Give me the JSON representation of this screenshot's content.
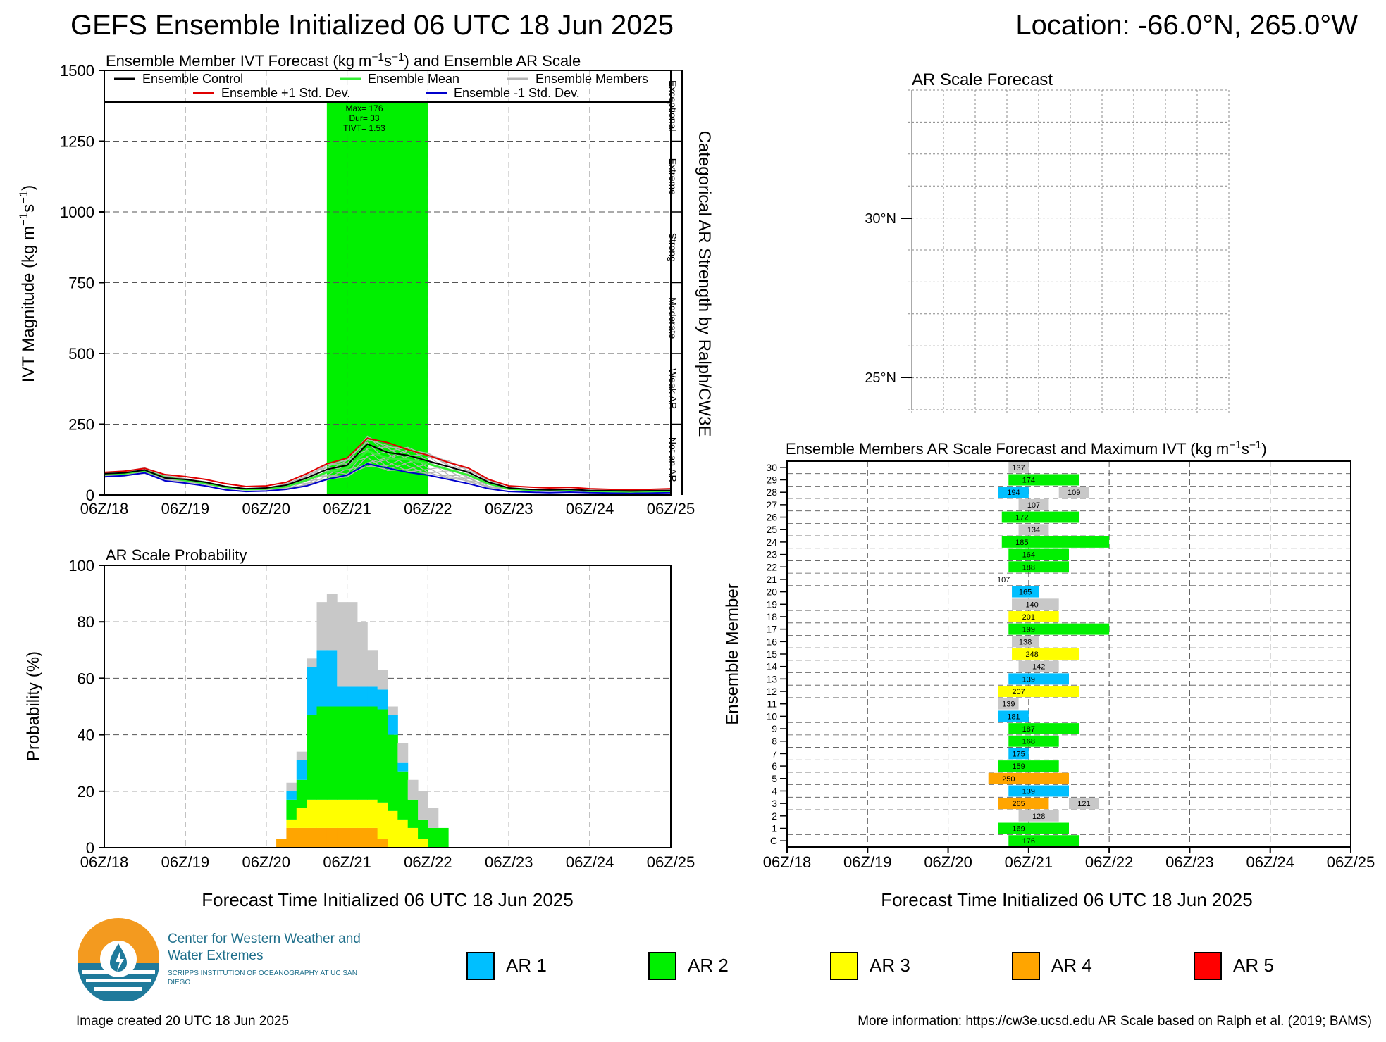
{
  "header": {
    "title": "GEFS Ensemble Initialized 06 UTC 18 Jun 2025",
    "location": "Location: -66.0°N, 265.0°W"
  },
  "colors": {
    "ar1": "#00bfff",
    "ar2": "#00f000",
    "ar3": "#ffff00",
    "ar4": "#ffa500",
    "ar5": "#ff0000",
    "not_ar_gray": "#c8c8c8",
    "control": "#000000",
    "mean": "#33ee33",
    "plus_std": "#e00000",
    "minus_std": "#0000cc",
    "members": "#b4b4b4"
  },
  "x_ticks": [
    "06Z/18",
    "06Z/19",
    "06Z/20",
    "06Z/21",
    "06Z/22",
    "06Z/23",
    "06Z/24",
    "06Z/25"
  ],
  "chart_data": [
    {
      "type": "line",
      "title": "Ensemble Member IVT Forecast (kg m−1s−1) and Ensemble AR Scale",
      "ylabel": "IVT Magnitude (kg m−1s−1)",
      "right_label": "Categorical AR Strength by Ralph/CW3E",
      "ylim": [
        0,
        1500
      ],
      "yticks": [
        "0",
        "250",
        "500",
        "750",
        "1000",
        "1250",
        "1500"
      ],
      "categories_right": [
        "Not an AR",
        "Weak AR",
        "Moderate",
        "Strong",
        "Extreme",
        "Exceptional"
      ],
      "legend": [
        "Ensemble Control",
        "Ensemble Mean",
        "Ensemble Members",
        "Ensemble +1 Std. Dev.",
        "Ensemble -1 Std. Dev."
      ],
      "x_hours": [
        0,
        6,
        12,
        18,
        24,
        30,
        36,
        42,
        48,
        54,
        60,
        66,
        72,
        78,
        84,
        90,
        96,
        102,
        108,
        114,
        120,
        126,
        132,
        138,
        144,
        150,
        156,
        162,
        168
      ],
      "series": [
        {
          "name": "Ensemble Control",
          "values": [
            75,
            78,
            88,
            60,
            55,
            45,
            30,
            22,
            25,
            35,
            60,
            90,
            105,
            180,
            150,
            140,
            120,
            100,
            80,
            45,
            25,
            20,
            18,
            20,
            16,
            15,
            14,
            15,
            16
          ]
        },
        {
          "name": "Ensemble Mean",
          "values": [
            72,
            76,
            86,
            62,
            52,
            42,
            28,
            20,
            22,
            30,
            52,
            80,
            95,
            155,
            130,
            125,
            110,
            90,
            70,
            40,
            22,
            18,
            16,
            18,
            14,
            13,
            12,
            13,
            14
          ]
        },
        {
          "name": "Ensemble +1 Std. Dev.",
          "values": [
            80,
            84,
            94,
            72,
            65,
            55,
            40,
            30,
            32,
            45,
            75,
            110,
            130,
            200,
            185,
            160,
            140,
            115,
            95,
            55,
            32,
            28,
            25,
            27,
            22,
            20,
            18,
            20,
            22
          ]
        },
        {
          "name": "Ensemble -1 Std. Dev.",
          "values": [
            64,
            68,
            78,
            50,
            42,
            32,
            18,
            12,
            14,
            20,
            32,
            55,
            70,
            110,
            95,
            80,
            70,
            55,
            40,
            22,
            12,
            10,
            8,
            10,
            8,
            7,
            6,
            7,
            8
          ]
        }
      ],
      "ar_period": {
        "start_hour": 66,
        "end_hour": 96,
        "max": 176,
        "dur": 33,
        "tivt": 1.53
      },
      "annotation": [
        "Max= 176",
        "Dur= 33",
        "TIVT= 1.53"
      ]
    },
    {
      "type": "bar",
      "title": "AR Scale Probability",
      "ylabel": "Probability (%)",
      "xlabel": "Forecast Time Initialized 06 UTC 18 Jun 2025",
      "ylim": [
        0,
        100
      ],
      "yticks": [
        "0",
        "20",
        "40",
        "60",
        "80",
        "100"
      ],
      "bin_hours": 3,
      "x_start_hour": 51,
      "stacks": [
        {
          "ar4": 3,
          "ar3": 0,
          "ar2": 0,
          "ar1": 0,
          "gray": 0
        },
        {
          "ar4": 7,
          "ar3": 3,
          "ar2": 7,
          "ar1": 3,
          "gray": 3
        },
        {
          "ar4": 7,
          "ar3": 7,
          "ar2": 10,
          "ar1": 7,
          "gray": 3
        },
        {
          "ar4": 7,
          "ar3": 10,
          "ar2": 30,
          "ar1": 17,
          "gray": 3
        },
        {
          "ar4": 7,
          "ar3": 10,
          "ar2": 33,
          "ar1": 20,
          "gray": 17
        },
        {
          "ar4": 7,
          "ar3": 10,
          "ar2": 33,
          "ar1": 20,
          "gray": 20
        },
        {
          "ar4": 7,
          "ar3": 10,
          "ar2": 33,
          "ar1": 7,
          "gray": 30
        },
        {
          "ar4": 7,
          "ar3": 10,
          "ar2": 33,
          "ar1": 7,
          "gray": 30
        },
        {
          "ar4": 7,
          "ar3": 10,
          "ar2": 33,
          "ar1": 7,
          "gray": 23
        },
        {
          "ar4": 7,
          "ar3": 10,
          "ar2": 33,
          "ar1": 7,
          "gray": 13
        },
        {
          "ar4": 3,
          "ar3": 13,
          "ar2": 33,
          "ar1": 7,
          "gray": 7
        },
        {
          "ar4": 0,
          "ar3": 13,
          "ar2": 27,
          "ar1": 7,
          "gray": 3
        },
        {
          "ar4": 0,
          "ar3": 10,
          "ar2": 17,
          "ar1": 3,
          "gray": 7
        },
        {
          "ar4": 0,
          "ar3": 7,
          "ar2": 10,
          "ar1": 0,
          "gray": 7
        },
        {
          "ar4": 0,
          "ar3": 3,
          "ar2": 7,
          "ar1": 0,
          "gray": 10
        },
        {
          "ar4": 0,
          "ar3": 0,
          "ar2": 7,
          "ar1": 0,
          "gray": 7
        },
        {
          "ar4": 0,
          "ar3": 0,
          "ar2": 7,
          "ar1": 0,
          "gray": 0
        }
      ]
    },
    {
      "type": "table",
      "title": "Ensemble Members AR Scale Forecast and Maximum IVT (kg m−1s−1)",
      "ylabel": "Ensemble Member",
      "xlabel": "Forecast Time Initialized 06 UTC 18 Jun 2025",
      "members": [
        {
          "label": "C",
          "bars": [
            {
              "start": 66,
              "end": 87,
              "cat": "ar2",
              "max": 176
            }
          ]
        },
        {
          "label": "1",
          "bars": [
            {
              "start": 63,
              "end": 84,
              "cat": "ar2",
              "max": 169
            }
          ]
        },
        {
          "label": "2",
          "bars": [
            {
              "start": 69,
              "end": 81,
              "cat": "gray",
              "max": 128
            }
          ]
        },
        {
          "label": "3",
          "bars": [
            {
              "start": 63,
              "end": 78,
              "cat": "ar4",
              "max": 265
            },
            {
              "start": 84,
              "end": 93,
              "cat": "gray",
              "max": 121
            }
          ]
        },
        {
          "label": "4",
          "bars": [
            {
              "start": 66,
              "end": 84,
              "cat": "ar1",
              "max": 139
            }
          ]
        },
        {
          "label": "5",
          "bars": [
            {
              "start": 60,
              "end": 84,
              "cat": "ar4",
              "max": 250
            }
          ]
        },
        {
          "label": "6",
          "bars": [
            {
              "start": 63,
              "end": 81,
              "cat": "ar2",
              "max": 159
            }
          ]
        },
        {
          "label": "7",
          "bars": [
            {
              "start": 66,
              "end": 72,
              "cat": "ar1",
              "max": 175
            }
          ]
        },
        {
          "label": "8",
          "bars": [
            {
              "start": 66,
              "end": 81,
              "cat": "ar2",
              "max": 168
            }
          ]
        },
        {
          "label": "9",
          "bars": [
            {
              "start": 66,
              "end": 87,
              "cat": "ar2",
              "max": 187
            }
          ]
        },
        {
          "label": "10",
          "bars": [
            {
              "start": 63,
              "end": 72,
              "cat": "ar1",
              "max": 181
            }
          ]
        },
        {
          "label": "11",
          "bars": [
            {
              "start": 63,
              "end": 69,
              "cat": "gray",
              "max": 139
            }
          ]
        },
        {
          "label": "12",
          "bars": [
            {
              "start": 63,
              "end": 87,
              "cat": "ar3",
              "max": 207
            }
          ]
        },
        {
          "label": "13",
          "bars": [
            {
              "start": 66,
              "end": 84,
              "cat": "ar1",
              "max": 139
            }
          ]
        },
        {
          "label": "14",
          "bars": [
            {
              "start": 69,
              "end": 81,
              "cat": "gray",
              "max": 142
            }
          ]
        },
        {
          "label": "15",
          "bars": [
            {
              "start": 67,
              "end": 87,
              "cat": "ar3",
              "max": 248
            }
          ]
        },
        {
          "label": "16",
          "bars": [
            {
              "start": 67,
              "end": 75,
              "cat": "gray",
              "max": 138
            }
          ]
        },
        {
          "label": "17",
          "bars": [
            {
              "start": 66,
              "end": 96,
              "cat": "ar2",
              "max": 199
            }
          ]
        },
        {
          "label": "18",
          "bars": [
            {
              "start": 66,
              "end": 81,
              "cat": "ar3",
              "max": 201
            }
          ]
        },
        {
          "label": "19",
          "bars": [
            {
              "start": 67,
              "end": 81,
              "cat": "gray",
              "max": 140
            }
          ]
        },
        {
          "label": "20",
          "bars": [
            {
              "start": 67,
              "end": 75,
              "cat": "ar1",
              "max": 165
            }
          ]
        },
        {
          "label": "21",
          "bars": [
            {
              "start": 63,
              "end": 66,
              "cat": "none",
              "max": 107
            }
          ]
        },
        {
          "label": "22",
          "bars": [
            {
              "start": 66,
              "end": 84,
              "cat": "ar2",
              "max": 188
            }
          ]
        },
        {
          "label": "23",
          "bars": [
            {
              "start": 66,
              "end": 84,
              "cat": "ar2",
              "max": 164
            }
          ]
        },
        {
          "label": "24",
          "bars": [
            {
              "start": 64,
              "end": 96,
              "cat": "ar2",
              "max": 185
            }
          ]
        },
        {
          "label": "25",
          "bars": [
            {
              "start": 69,
              "end": 78,
              "cat": "gray",
              "max": 134
            }
          ]
        },
        {
          "label": "26",
          "bars": [
            {
              "start": 64,
              "end": 87,
              "cat": "ar2",
              "max": 172
            }
          ]
        },
        {
          "label": "27",
          "bars": [
            {
              "start": 69,
              "end": 78,
              "cat": "gray",
              "max": 107
            }
          ]
        },
        {
          "label": "28",
          "bars": [
            {
              "start": 63,
              "end": 72,
              "cat": "ar1",
              "max": 194
            },
            {
              "start": 81,
              "end": 90,
              "cat": "gray",
              "max": 109
            }
          ]
        },
        {
          "label": "29",
          "bars": [
            {
              "start": 66,
              "end": 87,
              "cat": "ar2",
              "max": 174
            }
          ]
        },
        {
          "label": "30",
          "bars": [
            {
              "start": 66,
              "end": 72,
              "cat": "gray",
              "max": 137
            }
          ]
        }
      ]
    }
  ],
  "map": {
    "title": "AR Scale Forecast",
    "lat_labels": [
      "30°N",
      "25°N"
    ]
  },
  "legend_bottom": [
    "AR 1",
    "AR 2",
    "AR 3",
    "AR 4",
    "AR 5"
  ],
  "footer": {
    "org_name": "Center for Western Weather and Water Extremes",
    "org_sub": "SCRIPPS INSTITUTION OF OCEANOGRAPHY AT UC SAN DIEGO",
    "created": "Image created 20 UTC 18 Jun 2025",
    "more_info": "More information: https://cw3e.ucsd.edu AR Scale based on Ralph et al. (2019; BAMS)"
  }
}
